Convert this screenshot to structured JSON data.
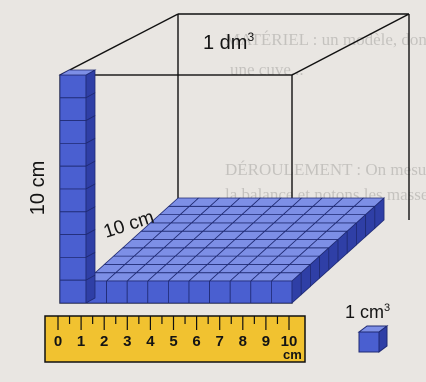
{
  "labels": {
    "volume_cube": "1 dm",
    "volume_cube_exp": "3",
    "height": "10 cm",
    "depth": "10 cm",
    "unit_cube": "1 cm",
    "unit_cube_exp": "3"
  },
  "ruler": {
    "ticks": [
      "0",
      "1",
      "2",
      "3",
      "4",
      "5",
      "6",
      "7",
      "8",
      "9",
      "10"
    ],
    "unit": "cm"
  },
  "colors": {
    "cube_front": "#4a5fd0",
    "cube_top": "#7d8fe6",
    "cube_side": "#2f3fa6",
    "grid_line": "#1f2a73",
    "ruler": "#f1c230",
    "frame": "#111111"
  },
  "background_text": [
    "MATÉRIEL : un modèle, donc",
    "une cuve...",
    "DÉROULEMENT : On mesure",
    "la balance et notons les masses"
  ]
}
